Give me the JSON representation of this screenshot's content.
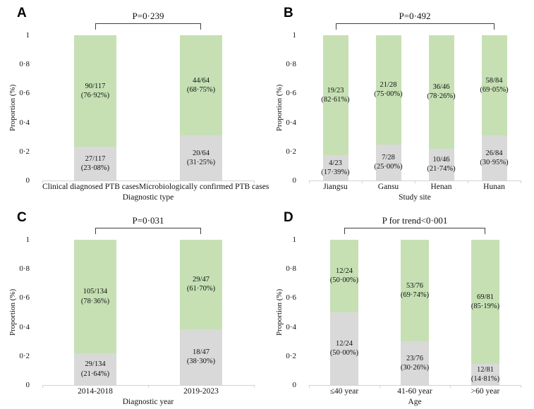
{
  "colors": {
    "green": "#c6e0b4",
    "gray": "#d9d9d9",
    "axis_line": "#d3d3d3",
    "bracket": "#3f3f3f",
    "text": "#111111",
    "background": "#ffffff"
  },
  "y_axis": {
    "label": "Proportion (%)",
    "ticks": [
      {
        "value": 1,
        "label": "1"
      },
      {
        "value": 0.8,
        "label": "0·8"
      },
      {
        "value": 0.6,
        "label": "0·6"
      },
      {
        "value": 0.4,
        "label": "0·4"
      },
      {
        "value": 0.2,
        "label": "0·2"
      },
      {
        "value": 0,
        "label": "0"
      }
    ]
  },
  "chart_data": [
    {
      "type": "bar",
      "stacked": true,
      "panel_letter": "A",
      "p_value_label": "P=0·239",
      "xlabel": "Diagnostic type",
      "ylabel": "Proportion (%)",
      "ylim": [
        0,
        1
      ],
      "yticks": [
        "0",
        "0·2",
        "0·4",
        "0·6",
        "0·8",
        "1"
      ],
      "legend": "none",
      "categories": [
        "Clinical diagnosed PTB cases",
        "Microbiologically confirmed PTB cases"
      ],
      "series": [
        {
          "name": "lower segment",
          "color_key": "gray",
          "values": [
            0.2308,
            0.3125
          ],
          "labels": [
            [
              "27/117",
              "(23·08%)"
            ],
            [
              "20/64",
              "(31·25%)"
            ]
          ]
        },
        {
          "name": "upper segment",
          "color_key": "green",
          "values": [
            0.7692,
            0.6875
          ],
          "labels": [
            [
              "90/117",
              "(76·92%)"
            ],
            [
              "44/64",
              "(68·75%)"
            ]
          ]
        }
      ]
    },
    {
      "type": "bar",
      "stacked": true,
      "panel_letter": "B",
      "p_value_label": "P=0·492",
      "xlabel": "Study site",
      "ylabel": "Proportion (%)",
      "ylim": [
        0,
        1
      ],
      "yticks": [
        "0",
        "0·2",
        "0·4",
        "0·6",
        "0·8",
        "1"
      ],
      "legend": "none",
      "categories": [
        "Jiangsu",
        "Gansu",
        "Henan",
        "Hunan"
      ],
      "series": [
        {
          "name": "lower segment",
          "color_key": "gray",
          "values": [
            0.1739,
            0.25,
            0.2174,
            0.3095
          ],
          "labels": [
            [
              "4/23",
              "(17·39%)"
            ],
            [
              "7/28",
              "(25·00%)"
            ],
            [
              "10/46",
              "(21·74%)"
            ],
            [
              "26/84",
              "(30·95%)"
            ]
          ]
        },
        {
          "name": "upper segment",
          "color_key": "green",
          "values": [
            0.8261,
            0.75,
            0.7826,
            0.6905
          ],
          "labels": [
            [
              "19/23",
              "(82·61%)"
            ],
            [
              "21/28",
              "(75·00%)"
            ],
            [
              "36/46",
              "(78·26%)"
            ],
            [
              "58/84",
              "(69·05%)"
            ]
          ]
        }
      ]
    },
    {
      "type": "bar",
      "stacked": true,
      "panel_letter": "C",
      "p_value_label": "P=0·031",
      "xlabel": "Diagnostic year",
      "ylabel": "Proportion (%)",
      "ylim": [
        0,
        1
      ],
      "yticks": [
        "0",
        "0·2",
        "0·4",
        "0·6",
        "0·8",
        "1"
      ],
      "legend": "none",
      "categories": [
        "2014-2018",
        "2019-2023"
      ],
      "series": [
        {
          "name": "lower segment",
          "color_key": "gray",
          "values": [
            0.2164,
            0.383
          ],
          "labels": [
            [
              "29/134",
              "(21·64%)"
            ],
            [
              "18/47",
              "(38·30%)"
            ]
          ]
        },
        {
          "name": "upper segment",
          "color_key": "green",
          "values": [
            0.7836,
            0.617
          ],
          "labels": [
            [
              "105/134",
              "(78·36%)"
            ],
            [
              "29/47",
              "(61·70%)"
            ]
          ]
        }
      ]
    },
    {
      "type": "bar",
      "stacked": true,
      "panel_letter": "D",
      "p_value_label": "P for trend<0·001",
      "xlabel": "Age",
      "ylabel": "Proportion (%)",
      "ylim": [
        0,
        1
      ],
      "yticks": [
        "0",
        "0·2",
        "0·4",
        "0·6",
        "0·8",
        "1"
      ],
      "legend": "none",
      "categories": [
        "≤40 year",
        "41-60 year",
        ">60 year"
      ],
      "series": [
        {
          "name": "lower segment",
          "color_key": "gray",
          "values": [
            0.5,
            0.3026,
            0.1481
          ],
          "labels": [
            [
              "12/24",
              "(50·00%)"
            ],
            [
              "23/76",
              "(30·26%)"
            ],
            [
              "12/81",
              "(14·81%)"
            ]
          ]
        },
        {
          "name": "upper segment",
          "color_key": "green",
          "values": [
            0.5,
            0.6974,
            0.8519
          ],
          "labels": [
            [
              "12/24",
              "(50·00%)"
            ],
            [
              "53/76",
              "(69·74%)"
            ],
            [
              "69/81",
              "(85·19%)"
            ]
          ]
        }
      ]
    }
  ]
}
